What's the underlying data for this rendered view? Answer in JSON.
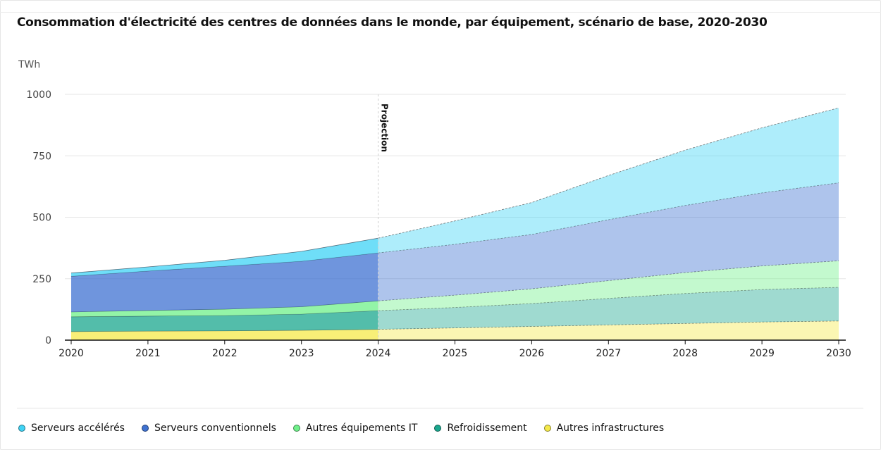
{
  "chart_data": {
    "type": "area",
    "title": "Consommation d'électricité des centres de données dans le monde, par équipement, scénario de base, 2020-2030",
    "ylabel": "TWh",
    "xlabel": "",
    "ylim": [
      0,
      1000
    ],
    "yticks": [
      0,
      250,
      500,
      750,
      1000
    ],
    "x": [
      "2020",
      "2021",
      "2022",
      "2023",
      "2024",
      "2025",
      "2026",
      "2027",
      "2028",
      "2029",
      "2030"
    ],
    "projection_start": "2024",
    "projection_label": "Projection",
    "stacked": true,
    "grid": true,
    "legend_position": "bottom-left",
    "series": [
      {
        "name": "Autres infrastructures",
        "color": "#f5e94a",
        "values": [
          35,
          37,
          38,
          40,
          44,
          50,
          56,
          62,
          68,
          74,
          78
        ]
      },
      {
        "name": "Refroidissement",
        "color": "#1aa78e",
        "values": [
          60,
          61,
          62,
          66,
          76,
          83,
          93,
          108,
          122,
          132,
          137
        ]
      },
      {
        "name": "Autres équipements IT",
        "color": "#6ff08a",
        "values": [
          20,
          23,
          26,
          30,
          40,
          50,
          60,
          72,
          85,
          96,
          108
        ]
      },
      {
        "name": "Serveurs conventionnels",
        "color": "#3f72d1",
        "values": [
          145,
          160,
          175,
          185,
          195,
          207,
          221,
          248,
          273,
          297,
          317
        ]
      },
      {
        "name": "Serveurs accélérés",
        "color": "#3fd3f5",
        "values": [
          13,
          17,
          24,
          40,
          60,
          95,
          130,
          180,
          225,
          265,
          305
        ]
      }
    ]
  }
}
